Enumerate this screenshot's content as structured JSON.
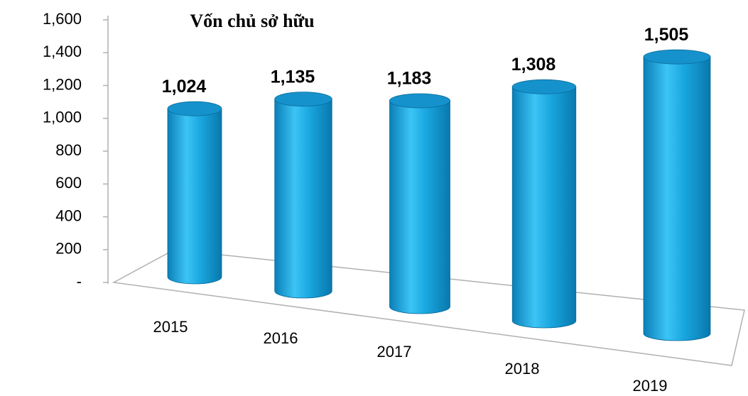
{
  "chart_data": {
    "type": "bar",
    "title": "Vốn chủ sở hữu",
    "categories": [
      "2015",
      "2016",
      "2017",
      "2018",
      "2019"
    ],
    "values": [
      1024,
      1135,
      1183,
      1308,
      1505
    ],
    "value_labels": [
      "1,024",
      "1,135",
      "1,183",
      "1,308",
      "1,505"
    ],
    "color": "#1aa7e0",
    "ylim": [
      0,
      1600
    ],
    "yticks": [
      {
        "value": 0,
        "label": "-"
      },
      200,
      400,
      600,
      800,
      {
        "value": 1000,
        "label": "1,000"
      },
      {
        "value": 1200,
        "label": "1,200"
      },
      {
        "value": 1400,
        "label": "1,400"
      },
      {
        "value": 1600,
        "label": "1,600"
      }
    ]
  }
}
